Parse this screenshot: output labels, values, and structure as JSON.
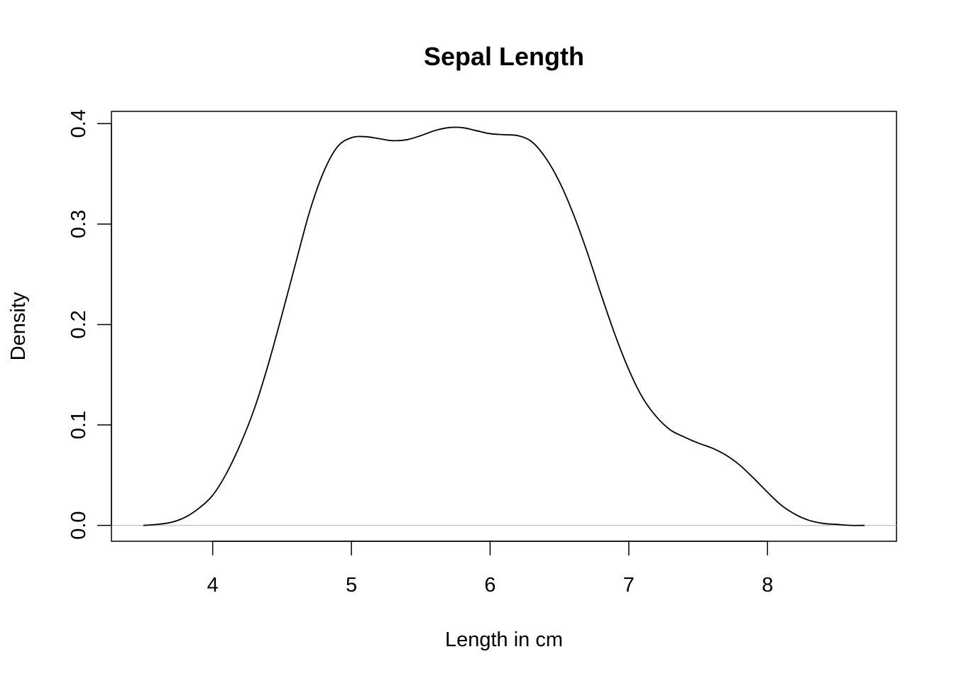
{
  "chart_data": {
    "type": "line",
    "title": "Sepal Length",
    "xlabel": "Length in cm",
    "ylabel": "Density",
    "x_ticks": [
      4,
      5,
      6,
      7,
      8
    ],
    "y_ticks": [
      0.0,
      0.1,
      0.2,
      0.3,
      0.4
    ],
    "x_tick_labels": [
      "4",
      "5",
      "6",
      "7",
      "8"
    ],
    "y_tick_labels": [
      "0.0",
      "0.1",
      "0.2",
      "0.3",
      "0.4"
    ],
    "xlim": [
      3.27,
      8.93
    ],
    "ylim": [
      -0.0158,
      0.4122
    ],
    "grid": false,
    "legend": "none",
    "baseline_y": 0,
    "colors": {
      "line": "#000000",
      "baseline": "#bebebe",
      "frame": "#000000"
    },
    "series": [
      {
        "x": [
          3.5,
          3.6,
          3.7,
          3.8,
          3.9,
          4.0,
          4.1,
          4.2,
          4.3,
          4.4,
          4.5,
          4.6,
          4.7,
          4.8,
          4.9,
          5.0,
          5.1,
          5.2,
          5.3,
          5.4,
          5.5,
          5.6,
          5.7,
          5.8,
          5.9,
          6.0,
          6.1,
          6.2,
          6.3,
          6.4,
          6.5,
          6.6,
          6.7,
          6.8,
          6.9,
          7.0,
          7.1,
          7.2,
          7.3,
          7.4,
          7.5,
          7.6,
          7.7,
          7.8,
          7.9,
          8.0,
          8.1,
          8.2,
          8.3,
          8.4,
          8.5,
          8.6,
          8.7
        ],
        "y": [
          0.0,
          0.001,
          0.003,
          0.008,
          0.017,
          0.03,
          0.052,
          0.081,
          0.116,
          0.16,
          0.21,
          0.262,
          0.313,
          0.352,
          0.377,
          0.386,
          0.387,
          0.385,
          0.383,
          0.384,
          0.388,
          0.393,
          0.396,
          0.396,
          0.393,
          0.39,
          0.389,
          0.388,
          0.382,
          0.366,
          0.342,
          0.31,
          0.272,
          0.23,
          0.19,
          0.155,
          0.127,
          0.108,
          0.095,
          0.088,
          0.082,
          0.077,
          0.07,
          0.06,
          0.047,
          0.033,
          0.02,
          0.011,
          0.005,
          0.002,
          0.001,
          0.0,
          0.0
        ]
      }
    ]
  }
}
